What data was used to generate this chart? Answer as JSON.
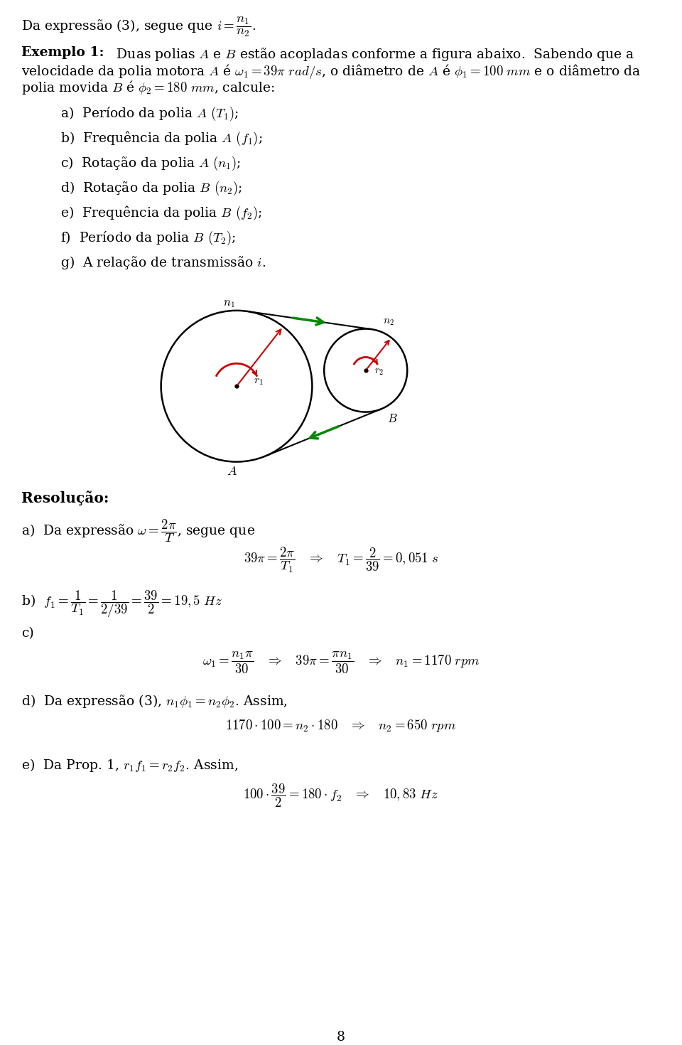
{
  "bg_color": "#ffffff",
  "text_color": "#000000",
  "fs": 13.5,
  "fs_bold": 13.5,
  "line0": "Da expressão (3), segue que $i = \\dfrac{n_1}{n_2}$.",
  "ex_title": "Exemplo 1:",
  "ex_line1": "  Duas polias $A$ e $B$ estão acopladas conforme a figura abaixo.  Sabendo que a",
  "ex_line2": "velocidade da polia motora $A$ é $\\omega_1 = 39\\pi\\ rad/s$, o diâmetro de $A$ é $\\phi_1 = 100\\ mm$ e o diâmetro da",
  "ex_line3": "polia movida $B$ é $\\phi_2 = 180\\ mm$, calcule:",
  "item_a": "a)  Período da polia $A$ $(T_1)$;",
  "item_b": "b)  Frequência da polia $A$ $(f_1)$;",
  "item_c": "c)  Rotação da polia $A$ $(n_1)$;",
  "item_d": "d)  Rotação da polia $B$ $(n_2)$;",
  "item_e": "e)  Frequência da polia $B$ $(f_2)$;",
  "item_f": "f)  Período da polia $B$ $(T_2)$;",
  "item_g": "g)  A relação de transmissão $i$.",
  "res_title": "Resolução:",
  "sol_a1": "a)  Da expressão $\\omega = \\dfrac{2\\pi}{T}$, segue que",
  "sol_a2": "$39\\pi = \\dfrac{2\\pi}{T_1} \\quad \\Rightarrow \\quad T_1 = \\dfrac{2}{39} = 0,051\\ s$",
  "sol_b": "b)  $f_1 = \\dfrac{1}{T_1} = \\dfrac{1}{2/39} = \\dfrac{39}{2} = 19,5\\ Hz$",
  "sol_c1": "c)",
  "sol_c2": "$\\omega_1 = \\dfrac{n_1\\pi}{30} \\quad \\Rightarrow \\quad 39\\pi = \\dfrac{\\pi n_1}{30} \\quad \\Rightarrow \\quad n_1 = 1170\\ rpm$",
  "sol_d1": "d)  Da expressão (3), $n_1\\phi_1 = n_2\\phi_2$. Assim,",
  "sol_d2": "$1170 \\cdot 100 = n_2 \\cdot 180 \\quad \\Rightarrow \\quad n_2 = 650\\ rpm$",
  "sol_e1": "e)  Da Prop. 1, $r_1 f_1 = r_2 f_2$. Assim,",
  "sol_e2": "$100 \\cdot \\dfrac{39}{2} = 180 \\cdot f_2 \\quad \\Rightarrow \\quad 10,83\\ Hz$",
  "page": "8",
  "green": "#008800",
  "red": "#cc0000",
  "black": "#000000"
}
